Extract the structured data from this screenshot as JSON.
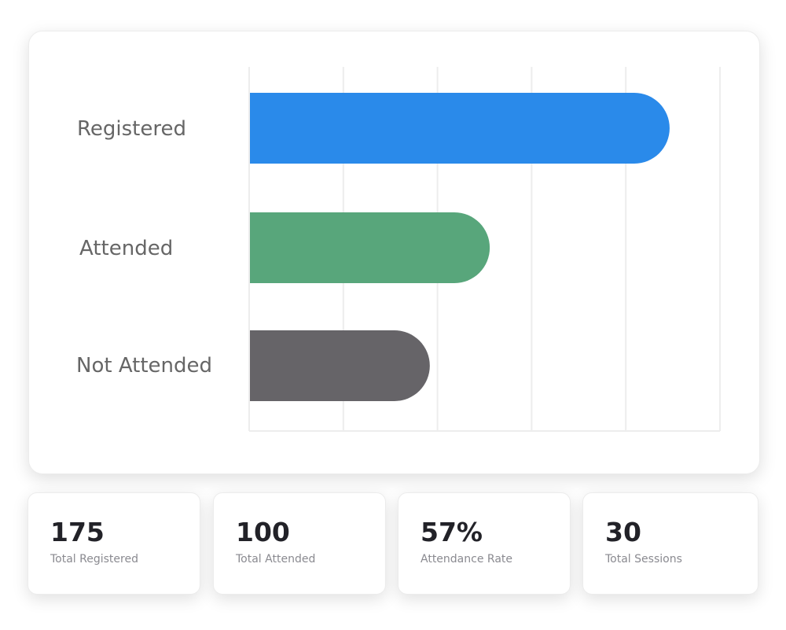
{
  "chart_data": {
    "type": "bar",
    "orientation": "horizontal",
    "categories": [
      "Registered",
      "Attended",
      "Not Attended"
    ],
    "values": [
      175,
      100,
      75
    ],
    "colors": [
      "#2a8aea",
      "#58a67b",
      "#666468"
    ],
    "xlim": [
      0,
      196
    ],
    "grid": true,
    "title": "",
    "xlabel": "",
    "ylabel": ""
  },
  "stats": [
    {
      "value": "175",
      "label": "Total Registered"
    },
    {
      "value": "100",
      "label": "Total Attended"
    },
    {
      "value": "57%",
      "label": "Attendance Rate"
    },
    {
      "value": "30",
      "label": "Total Sessions"
    }
  ]
}
